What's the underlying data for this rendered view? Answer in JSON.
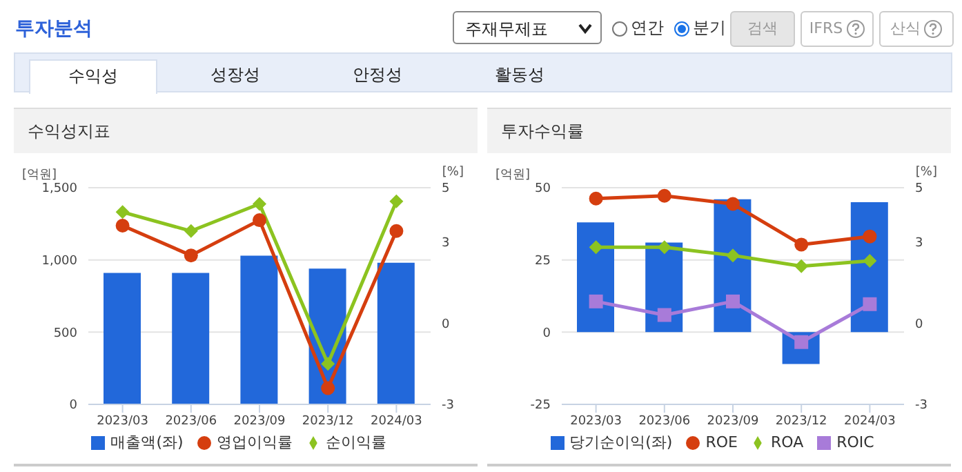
{
  "chart_data": [
    {
      "type": "other",
      "title": "투자분석",
      "annotations": [
        "주재무제표",
        "연간",
        "분기",
        "검색",
        "IFRS",
        "산식",
        "수익성",
        "성장성",
        "안정성",
        "활동성"
      ]
    },
    {
      "type": "bar",
      "title": "수익성지표",
      "ylabel": "[억원]",
      "y2label": "[%]",
      "categories": [
        "2023/03",
        "2023/06",
        "2023/09",
        "2023/12",
        "2024/03"
      ],
      "series": [
        {
          "name": "매출액(좌)",
          "type": "bar",
          "color": "#2268da",
          "values": [
            910,
            910,
            1030,
            940,
            980
          ]
        },
        {
          "name": "영업이익률",
          "type": "line",
          "axis": "y2",
          "marker": "circle",
          "color": "#d53e0f",
          "values": [
            3.6,
            2.5,
            3.8,
            -2.4,
            3.4
          ]
        },
        {
          "name": "순이익률",
          "type": "line",
          "axis": "y2",
          "marker": "diamond",
          "color": "#8cc320",
          "values": [
            4.1,
            3.4,
            4.4,
            -1.5,
            4.5
          ]
        }
      ],
      "ylim": [
        0,
        1500
      ],
      "yticks": [
        0,
        500,
        {
          "value": 1000,
          "label": "1,000"
        },
        {
          "value": 1500,
          "label": "1,500"
        }
      ],
      "y2lim": [
        -3,
        5
      ],
      "y2ticks": [
        -3,
        0,
        3,
        5
      ],
      "grid": "y",
      "legend": "bottom"
    },
    {
      "type": "bar",
      "title": "투자수익률",
      "ylabel": "[억원]",
      "y2label": "[%]",
      "categories": [
        "2023/03",
        "2023/06",
        "2023/09",
        "2023/12",
        "2024/03"
      ],
      "series": [
        {
          "name": "당기순이익(좌)",
          "type": "bar",
          "color": "#2268da",
          "values": [
            38,
            31,
            46,
            -11,
            45
          ]
        },
        {
          "name": "ROE",
          "type": "line",
          "axis": "y2",
          "marker": "circle",
          "color": "#d53e0f",
          "values": [
            4.6,
            4.7,
            4.4,
            2.9,
            3.2
          ]
        },
        {
          "name": "ROA",
          "type": "line",
          "axis": "y2",
          "marker": "diamond",
          "color": "#8cc320",
          "values": [
            2.8,
            2.8,
            2.5,
            2.1,
            2.3
          ]
        },
        {
          "name": "ROIC",
          "type": "line",
          "axis": "y2",
          "marker": "square",
          "color": "#a87bd9",
          "values": [
            0.8,
            0.3,
            0.8,
            -0.7,
            0.7
          ]
        }
      ],
      "ylim": [
        -25,
        50
      ],
      "yticks": [
        -25,
        0,
        25,
        50
      ],
      "y2lim": [
        -3,
        5
      ],
      "y2ticks": [
        -3,
        0,
        3,
        5
      ],
      "grid": "y",
      "legend": "bottom"
    }
  ]
}
